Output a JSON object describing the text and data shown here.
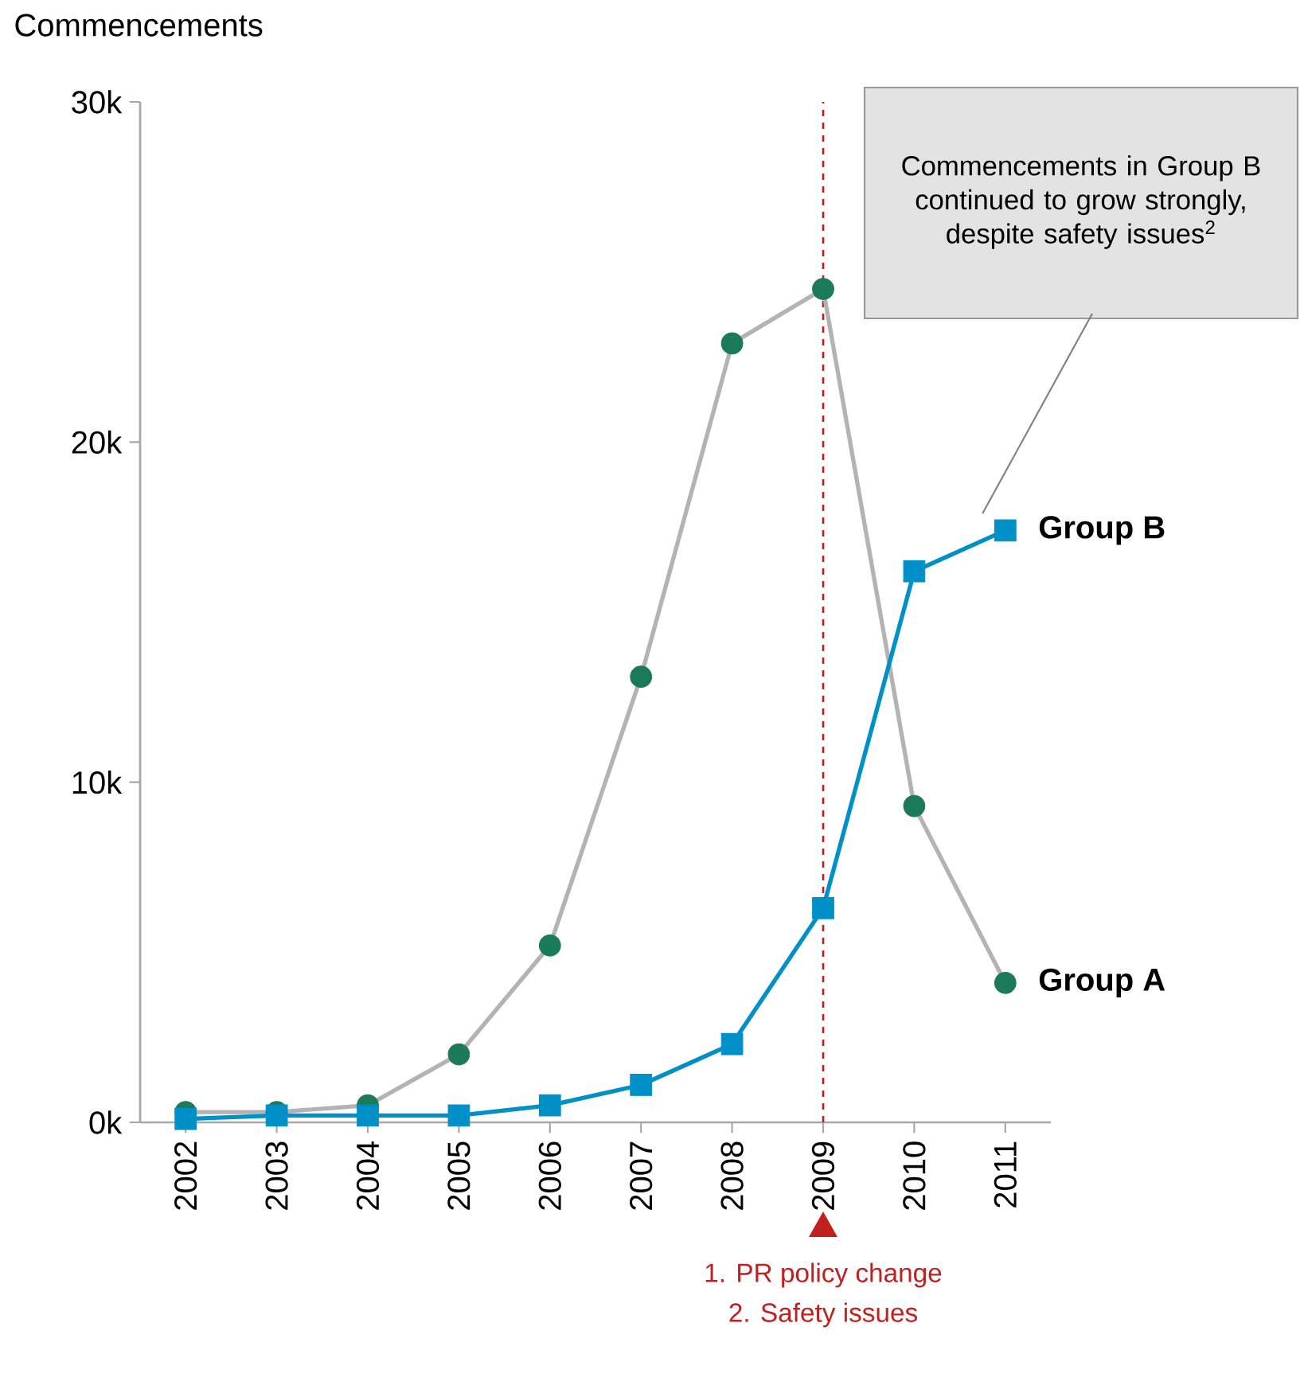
{
  "chart_data": {
    "type": "line",
    "ylabel": "Commencements",
    "categories": [
      "2002",
      "2003",
      "2004",
      "2005",
      "2006",
      "2007",
      "2008",
      "2009",
      "2010",
      "2011"
    ],
    "series": [
      {
        "name": "Group A",
        "color": "#b3b3b3",
        "colors": [
          "#1a7a5a",
          "#1a7a5a",
          "#1a7a5a",
          "#1a7a5a",
          "#1a7a5a",
          "#1a7a5a",
          "#1a7a5a",
          "#1a7a5a",
          "#1a7a5a",
          "#1a7a5a"
        ],
        "marker": "circle",
        "values": [
          0.3,
          0.3,
          0.5,
          2.0,
          5.2,
          13.1,
          22.9,
          24.5,
          9.3,
          4.1
        ]
      },
      {
        "name": "Group B",
        "color": "#0090c8",
        "marker": "square",
        "values": [
          0.1,
          0.2,
          0.2,
          0.2,
          0.5,
          1.1,
          2.3,
          6.3,
          16.2,
          17.4
        ]
      }
    ],
    "ylim": [
      0,
      30
    ],
    "yticks": [
      {
        "value": 0,
        "label": "0k"
      },
      {
        "value": 10,
        "label": "10k"
      },
      {
        "value": 20,
        "label": "20k"
      },
      {
        "value": 30,
        "label": "30k"
      }
    ],
    "grid": false,
    "legend": false,
    "line_style": "solid",
    "ref_lines": [
      {
        "axis": "x",
        "value": "2009",
        "color": "#c0201e",
        "line_style": "dashed"
      }
    ],
    "annotations": [
      "Commencements in Group B continued to grow strongly, despite safety issues$^{2}$",
      "1. PR policy change",
      "2. Safety issues"
    ]
  }
}
